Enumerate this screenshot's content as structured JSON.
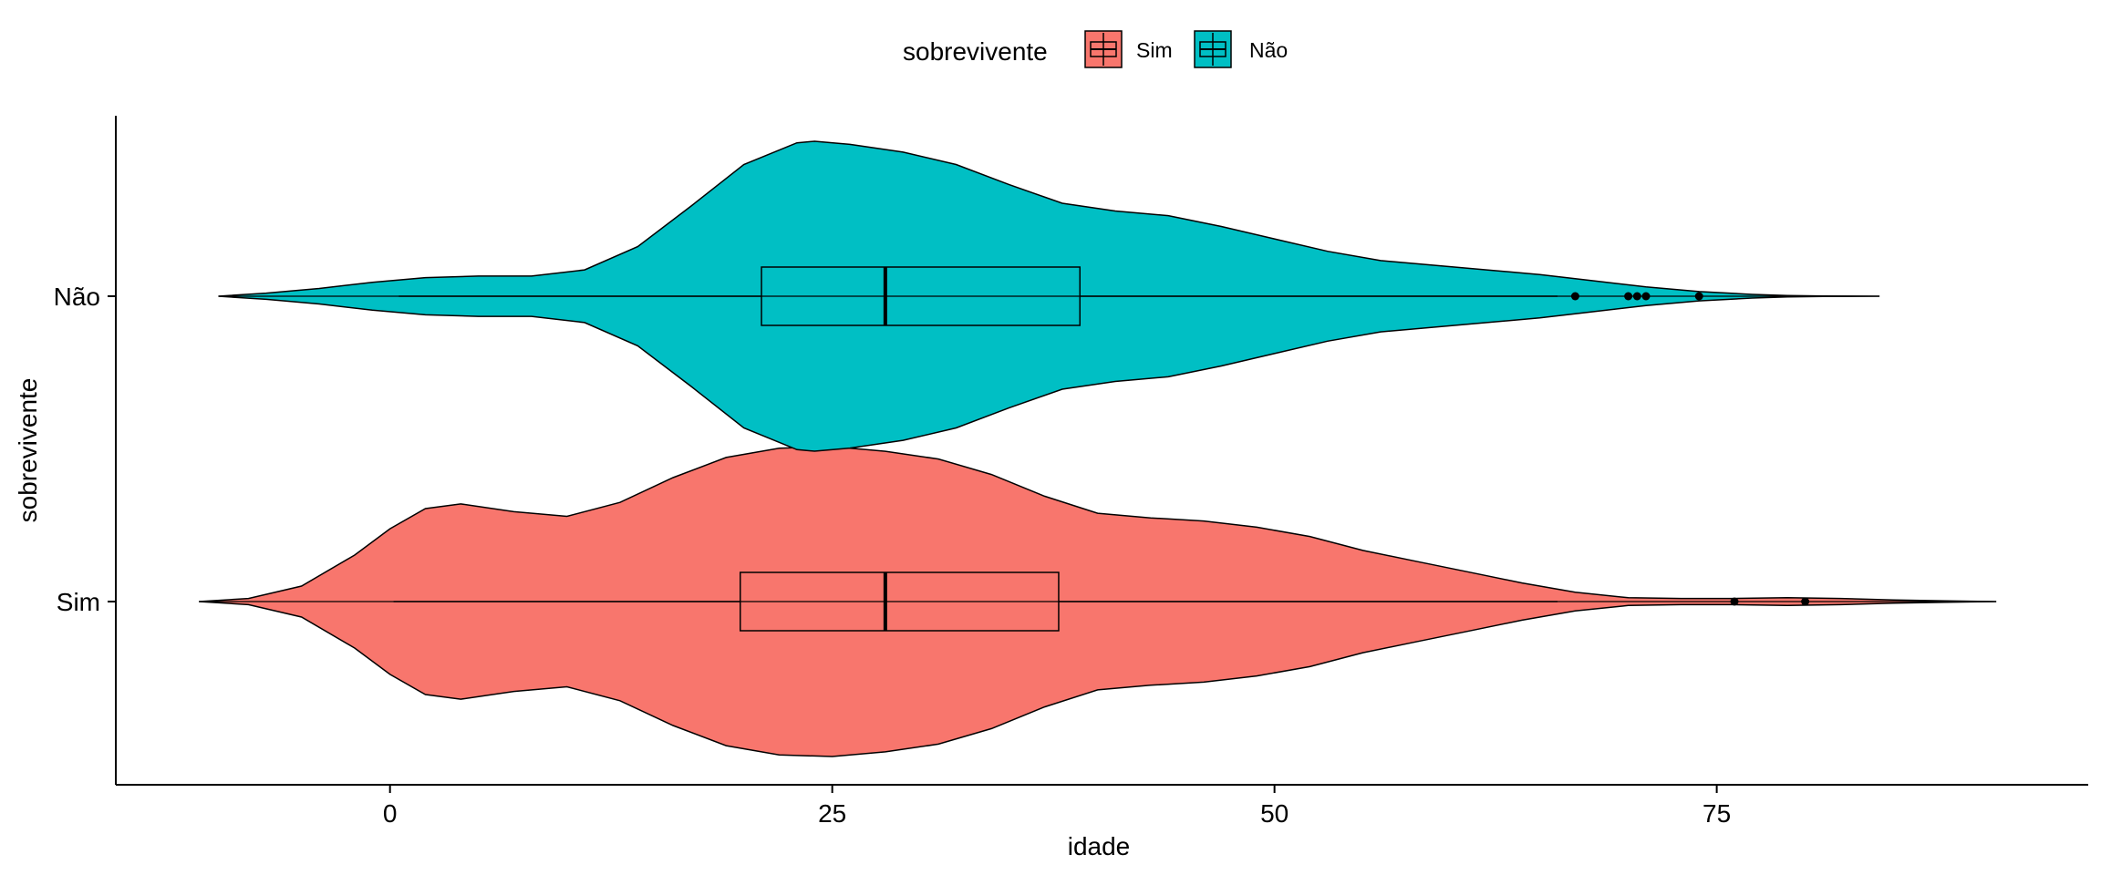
{
  "chart_data": {
    "type": "violin",
    "overlay": "boxplot",
    "orientation": "horizontal",
    "title": "",
    "xlabel": "idade",
    "ylabel": "sobrevivente",
    "xlim": [
      -15.5,
      96
    ],
    "x_ticks": [
      0,
      25,
      50,
      75
    ],
    "categories": [
      "Sim",
      "Não"
    ],
    "grid": false,
    "legend": {
      "title": "sobrevivente",
      "position": "top",
      "entries": [
        "Sim",
        "Não"
      ]
    },
    "series": [
      {
        "name": "Sim",
        "color": "#F8766D",
        "box": {
          "whisker_low": 0.2,
          "q1": 19.8,
          "median": 28,
          "q3": 37.8,
          "whisker_high": 66
        },
        "outliers": [
          76,
          80
        ],
        "density_extent": [
          -10.8,
          90.8
        ],
        "density": [
          [
            -10.8,
            0.0
          ],
          [
            -8,
            0.02
          ],
          [
            -5,
            0.1
          ],
          [
            -2,
            0.3
          ],
          [
            0,
            0.47
          ],
          [
            2,
            0.6
          ],
          [
            4,
            0.63
          ],
          [
            7,
            0.58
          ],
          [
            10,
            0.55
          ],
          [
            13,
            0.64
          ],
          [
            16,
            0.8
          ],
          [
            19,
            0.93
          ],
          [
            22,
            0.99
          ],
          [
            25,
            1.0
          ],
          [
            28,
            0.97
          ],
          [
            31,
            0.92
          ],
          [
            34,
            0.82
          ],
          [
            37,
            0.68
          ],
          [
            40,
            0.57
          ],
          [
            43,
            0.54
          ],
          [
            46,
            0.52
          ],
          [
            49,
            0.48
          ],
          [
            52,
            0.42
          ],
          [
            55,
            0.33
          ],
          [
            58,
            0.26
          ],
          [
            61,
            0.19
          ],
          [
            64,
            0.12
          ],
          [
            67,
            0.06
          ],
          [
            70,
            0.025
          ],
          [
            73,
            0.02
          ],
          [
            76,
            0.02
          ],
          [
            79,
            0.025
          ],
          [
            82,
            0.02
          ],
          [
            85,
            0.01
          ],
          [
            88,
            0.004
          ],
          [
            90.8,
            0.0
          ]
        ]
      },
      {
        "name": "Não",
        "color": "#00BFC4",
        "box": {
          "whisker_low": 0.5,
          "q1": 21,
          "median": 28,
          "q3": 39,
          "whisker_high": 66
        },
        "outliers": [
          67,
          70,
          70.5,
          71,
          74
        ],
        "density_extent": [
          -9.7,
          84.2
        ],
        "density": [
          [
            -9.7,
            0.0
          ],
          [
            -7,
            0.02
          ],
          [
            -4,
            0.05
          ],
          [
            -1,
            0.09
          ],
          [
            2,
            0.12
          ],
          [
            5,
            0.13
          ],
          [
            8,
            0.13
          ],
          [
            11,
            0.17
          ],
          [
            14,
            0.32
          ],
          [
            17,
            0.58
          ],
          [
            20,
            0.85
          ],
          [
            23,
            0.99
          ],
          [
            24,
            1.0
          ],
          [
            26,
            0.98
          ],
          [
            29,
            0.93
          ],
          [
            32,
            0.85
          ],
          [
            35,
            0.72
          ],
          [
            38,
            0.6
          ],
          [
            41,
            0.55
          ],
          [
            44,
            0.52
          ],
          [
            47,
            0.45
          ],
          [
            50,
            0.37
          ],
          [
            53,
            0.29
          ],
          [
            56,
            0.23
          ],
          [
            59,
            0.2
          ],
          [
            62,
            0.17
          ],
          [
            65,
            0.14
          ],
          [
            68,
            0.1
          ],
          [
            71,
            0.06
          ],
          [
            74,
            0.03
          ],
          [
            77,
            0.012
          ],
          [
            79,
            0.004
          ],
          [
            81,
            0.001
          ],
          [
            84.2,
            0.0
          ]
        ]
      }
    ]
  }
}
